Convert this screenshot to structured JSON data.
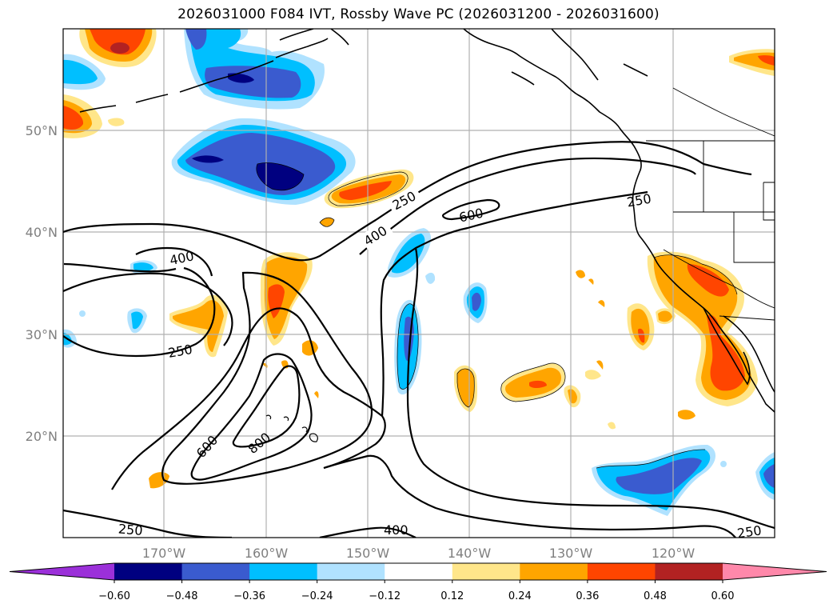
{
  "title": "2026031000 F084 IVT, Rossby Wave PC (2026031200 - 2026031600)",
  "map": {
    "lat_labels": [
      "50°N",
      "40°N",
      "30°N",
      "20°N"
    ],
    "lon_labels": [
      "170°W",
      "160°W",
      "150°W",
      "140°W",
      "130°W",
      "120°W"
    ],
    "contour_labels": [
      {
        "text": "250",
        "id": "c250-a"
      },
      {
        "text": "400",
        "id": "c400-a"
      },
      {
        "text": "600",
        "id": "c600-a"
      },
      {
        "text": "250",
        "id": "c250-b"
      },
      {
        "text": "400",
        "id": "c400-b"
      },
      {
        "text": "250",
        "id": "c250-c"
      },
      {
        "text": "600",
        "id": "c600-b"
      },
      {
        "text": "800",
        "id": "c800"
      },
      {
        "text": "250",
        "id": "c250-d"
      },
      {
        "text": "400",
        "id": "c400-c"
      },
      {
        "text": "250",
        "id": "c250-e"
      }
    ]
  },
  "colorbar": {
    "ticks": [
      "−0.60",
      "−0.48",
      "−0.36",
      "−0.24",
      "−0.12",
      "0.12",
      "0.24",
      "0.36",
      "0.48",
      "0.60"
    ],
    "colors": [
      "#9b30d9",
      "#000080",
      "#3a5bcf",
      "#00bfff",
      "#b0e2ff",
      "#ffffff",
      "#ffe68a",
      "#ffa500",
      "#ff4500",
      "#b22222",
      "#ff88aa"
    ]
  }
}
